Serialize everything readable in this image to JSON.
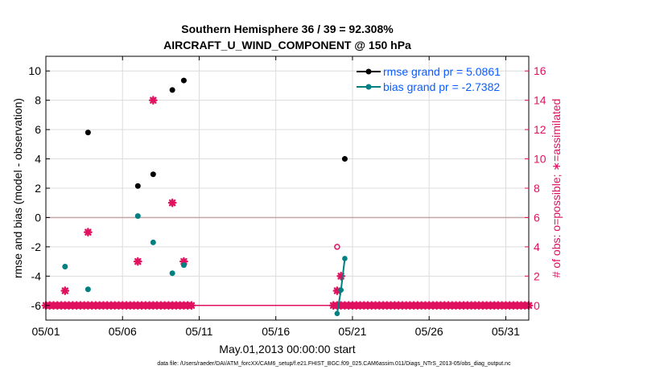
{
  "chart_data": {
    "type": "scatter",
    "title_line1": "Southern Hemisphere 36 / 39 = 92.308%",
    "title_line2": "AIRCRAFT_U_WIND_COMPONENT @ 150 hPa",
    "xlabel": "May.01,2013 00:00:00 start",
    "ylabel_left": "rmse and bias (model - observation)",
    "ylabel_right": "# of obs: o=possible; ∗=assimilated",
    "xlim": [
      1,
      32.5
    ],
    "ylim_left": [
      -7,
      11
    ],
    "ylim_right": [
      -1,
      17
    ],
    "x_ticks": [
      1,
      6,
      11,
      16,
      21,
      26,
      31
    ],
    "x_tick_labels": [
      "05/01",
      "05/06",
      "05/11",
      "05/16",
      "05/21",
      "05/26",
      "05/31"
    ],
    "y_left_ticks": [
      -6,
      -4,
      -2,
      0,
      2,
      4,
      6,
      8,
      10
    ],
    "y_right_ticks": [
      0,
      2,
      4,
      6,
      8,
      10,
      12,
      14,
      16
    ],
    "zero_line": 0,
    "legend": {
      "rmse_label": "rmse grand pr = 5.0861",
      "bias_label": "bias grand pr = -2.7382"
    },
    "colors": {
      "rmse": "#000000",
      "bias": "#008080",
      "counts": "#e0115f",
      "legend_text": "#0a5cff",
      "grid": "#dcdcdc",
      "zero_line": "#c4a4a4"
    },
    "rmse_points": [
      {
        "x": 3.75,
        "y": 5.8
      },
      {
        "x": 7.0,
        "y": 2.15
      },
      {
        "x": 8.0,
        "y": 2.95
      },
      {
        "x": 9.25,
        "y": 8.7
      },
      {
        "x": 10.0,
        "y": 9.35
      },
      {
        "x": 20.5,
        "y": 4.0
      }
    ],
    "bias_points": [
      {
        "x": 2.25,
        "y": -3.35
      },
      {
        "x": 3.75,
        "y": -4.9
      },
      {
        "x": 7.0,
        "y": 0.1
      },
      {
        "x": 8.0,
        "y": -1.7
      },
      {
        "x": 9.25,
        "y": -3.8
      },
      {
        "x": 10.0,
        "y": -3.25
      }
    ],
    "bias_segment": [
      {
        "x": 20.0,
        "y": -6.55
      },
      {
        "x": 20.25,
        "y": -4.95
      },
      {
        "x": 20.5,
        "y": -2.8
      }
    ],
    "possible_points": [
      {
        "x": 20.0,
        "y": 4
      }
    ],
    "assimilated_points": [
      {
        "x": 2.25,
        "y": 1
      },
      {
        "x": 3.75,
        "y": 5
      },
      {
        "x": 7.0,
        "y": 3
      },
      {
        "x": 8.0,
        "y": 14
      },
      {
        "x": 9.25,
        "y": 7
      },
      {
        "x": 10.0,
        "y": 3
      },
      {
        "x": 20.0,
        "y": 1
      },
      {
        "x": 20.25,
        "y": 2
      }
    ],
    "baseline_count": 0,
    "baseline_x_range": [
      1,
      32.5
    ],
    "baseline_step": 0.25,
    "baseline_gaps": [
      [
        10.5,
        19.75
      ]
    ]
  },
  "footer": "data file: /Users/raeder/DAI/ATM_forcXX/CAM6_setup/f.e21.FHIST_BGC.f09_025.CAM6assim.011/Diags_NTrS_2013-05/obs_diag_output.nc"
}
